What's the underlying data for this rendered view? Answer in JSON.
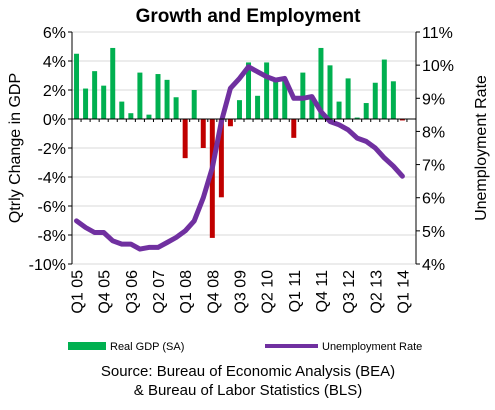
{
  "chart_data": {
    "type": "bar",
    "title": "Growth and Employment",
    "source_line1": "Source: Bureau of Economic Analysis (BEA)",
    "source_line2": "& Bureau of Labor Statistics (BLS)",
    "x_tick_labels": [
      "Q1 05",
      "Q4 05",
      "Q3 06",
      "Q2 07",
      "Q1 08",
      "Q4 08",
      "Q3 09",
      "Q2 10",
      "Q1 11",
      "Q4 11",
      "Q3 12",
      "Q2 13",
      "Q1 14"
    ],
    "quarters": [
      "Q1 05",
      "Q2 05",
      "Q3 05",
      "Q4 05",
      "Q1 06",
      "Q2 06",
      "Q3 06",
      "Q4 06",
      "Q1 07",
      "Q2 07",
      "Q3 07",
      "Q4 07",
      "Q1 08",
      "Q2 08",
      "Q3 08",
      "Q4 08",
      "Q1 09",
      "Q2 09",
      "Q3 09",
      "Q4 09",
      "Q1 10",
      "Q2 10",
      "Q3 10",
      "Q4 10",
      "Q1 11",
      "Q2 11",
      "Q3 11",
      "Q4 11",
      "Q1 12",
      "Q2 12",
      "Q3 12",
      "Q4 12",
      "Q1 13",
      "Q2 13",
      "Q3 13",
      "Q4 13",
      "Q1 14",
      "Q2 14"
    ],
    "y_left": {
      "label": "Qtrly Change in GDP",
      "ylim": [
        -10,
        6
      ],
      "ticks": [
        -10,
        -8,
        -6,
        -4,
        -2,
        0,
        2,
        4,
        6
      ],
      "tick_labels": [
        "-10%",
        "-8%",
        "-6%",
        "-4%",
        "-2%",
        "0%",
        "2%",
        "4%",
        "6%"
      ]
    },
    "y_right": {
      "label": "Unemployment Rate",
      "ylim": [
        4,
        11
      ],
      "ticks": [
        4,
        5,
        6,
        7,
        8,
        9,
        10,
        11
      ],
      "tick_labels": [
        "4%",
        "5%",
        "6%",
        "7%",
        "8%",
        "9%",
        "10%",
        "11%"
      ]
    },
    "series": [
      {
        "name": "Real GDP (SA)",
        "kind": "bar",
        "axis": "left",
        "color": "#00b050",
        "negative_color": "#c00000",
        "values": [
          4.5,
          2.1,
          3.3,
          2.3,
          4.9,
          1.2,
          0.4,
          3.2,
          0.3,
          3.1,
          2.7,
          1.5,
          -2.7,
          2.0,
          -2.0,
          -8.2,
          -5.4,
          -0.5,
          1.3,
          3.9,
          1.6,
          3.9,
          2.8,
          2.8,
          -1.3,
          3.2,
          1.4,
          4.9,
          3.7,
          1.2,
          2.8,
          0.1,
          1.1,
          2.5,
          4.1,
          2.6,
          -0.1,
          0.0
        ]
      },
      {
        "name": "Unemployment Rate",
        "kind": "line",
        "axis": "right",
        "color": "#7030a0",
        "values": [
          5.3,
          5.1,
          4.95,
          4.95,
          4.7,
          4.6,
          4.6,
          4.45,
          4.5,
          4.5,
          4.65,
          4.8,
          5.0,
          5.3,
          6.0,
          6.9,
          8.3,
          9.3,
          9.6,
          9.95,
          9.8,
          9.65,
          9.55,
          9.6,
          9.0,
          9.0,
          9.05,
          8.6,
          8.3,
          8.2,
          8.05,
          7.8,
          7.7,
          7.5,
          7.2,
          6.95,
          6.65
        ]
      }
    ],
    "grid": true,
    "legend": "bottom"
  }
}
